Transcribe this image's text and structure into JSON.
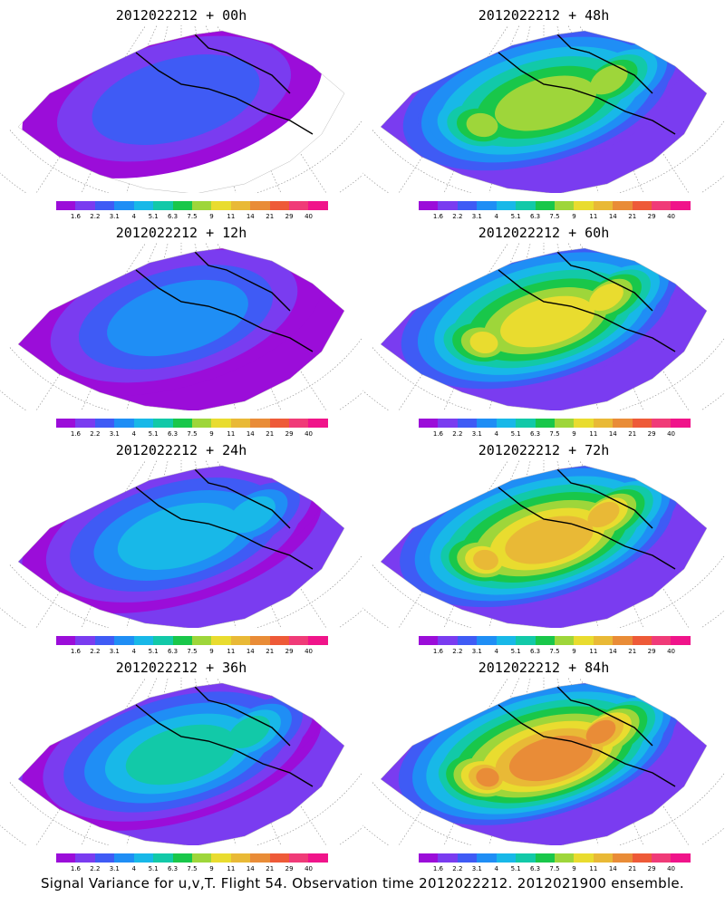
{
  "colorbar": {
    "colors": [
      "#9b0dd9",
      "#7a3cf0",
      "#3f5bf5",
      "#1f8ef5",
      "#18b8e8",
      "#12c9a8",
      "#19c74a",
      "#9ed63a",
      "#e9dc2f",
      "#e9b936",
      "#e98c37",
      "#ee5a38",
      "#f03b78",
      "#f0148a"
    ],
    "labels": [
      "1.6",
      "2.2",
      "3.1",
      "4",
      "5.1",
      "6.3",
      "7.5",
      "9",
      "11",
      "14",
      "21",
      "29",
      "40"
    ]
  },
  "panels": [
    {
      "title": "2012022212 + 00h",
      "intensity": 0
    },
    {
      "title": "2012022212 + 48h",
      "intensity": 4
    },
    {
      "title": "2012022212 + 12h",
      "intensity": 1
    },
    {
      "title": "2012022212 + 60h",
      "intensity": 5
    },
    {
      "title": "2012022212 + 24h",
      "intensity": 2
    },
    {
      "title": "2012022212 + 72h",
      "intensity": 6
    },
    {
      "title": "2012022212 + 36h",
      "intensity": 3
    },
    {
      "title": "2012022212 + 84h",
      "intensity": 7
    }
  ],
  "footer": "Signal Variance for u,v,T. Flight 54. Observation time 2012022212. 2012021900 ensemble."
}
